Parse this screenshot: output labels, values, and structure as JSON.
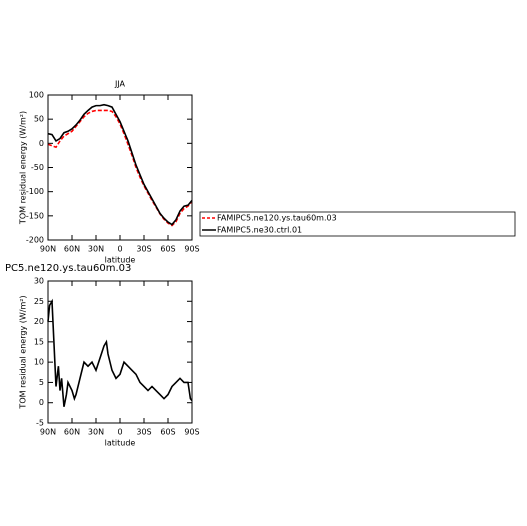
{
  "chart_data": [
    {
      "type": "line",
      "title": "JJA",
      "xlabel": "latitude",
      "ylabel": "TOM residual energy (W/m²)",
      "x": [
        90,
        85,
        80,
        75,
        70,
        65,
        60,
        55,
        50,
        45,
        40,
        35,
        30,
        25,
        20,
        15,
        10,
        5,
        0,
        -5,
        -10,
        -15,
        -20,
        -25,
        -30,
        -35,
        -40,
        -45,
        -50,
        -55,
        -60,
        -65,
        -70,
        -75,
        -80,
        -85,
        -90
      ],
      "xlim": [
        90,
        -90
      ],
      "xticks": [
        {
          "value": 90,
          "label": "90N"
        },
        {
          "value": 60,
          "label": "60N"
        },
        {
          "value": 30,
          "label": "30N"
        },
        0,
        {
          "value": -30,
          "label": "30S"
        },
        {
          "value": -60,
          "label": "60S"
        },
        {
          "value": -90,
          "label": "90S"
        }
      ],
      "ylim": [
        -200,
        100
      ],
      "yticks": [
        -200,
        -150,
        -100,
        -50,
        0,
        50,
        100
      ],
      "legend": "right",
      "series": [
        {
          "name": "FAMIPC5.ne120.ys.tau60m.03",
          "color": "#ff0000",
          "dash": true,
          "values": [
            -2,
            -5,
            -8,
            5,
            15,
            20,
            25,
            35,
            45,
            55,
            62,
            66,
            68,
            68,
            68,
            68,
            66,
            55,
            40,
            20,
            -2,
            -25,
            -50,
            -70,
            -88,
            -103,
            -118,
            -132,
            -146,
            -157,
            -165,
            -170,
            -162,
            -145,
            -135,
            -130,
            -120
          ]
        },
        {
          "name": "FAMIPC5.ne30.ctrl.01",
          "color": "#000000",
          "dash": false,
          "values": [
            20,
            18,
            5,
            10,
            22,
            25,
            30,
            38,
            48,
            60,
            68,
            75,
            78,
            78,
            80,
            78,
            75,
            60,
            45,
            25,
            5,
            -20,
            -45,
            -65,
            -85,
            -100,
            -115,
            -130,
            -145,
            -155,
            -163,
            -168,
            -158,
            -140,
            -130,
            -128,
            -118
          ]
        }
      ]
    },
    {
      "type": "line",
      "title": "PC5.ne120.ys.tau60m.03",
      "xlabel": "latitude",
      "ylabel": "TOM residual energy (W/m²)",
      "x": [
        90,
        88,
        85,
        80,
        77,
        75,
        73,
        70,
        67,
        65,
        60,
        57,
        55,
        50,
        45,
        40,
        35,
        30,
        25,
        20,
        17,
        15,
        10,
        5,
        0,
        -5,
        -10,
        -15,
        -20,
        -25,
        -30,
        -35,
        -40,
        -45,
        -50,
        -55,
        -60,
        -65,
        -70,
        -75,
        -80,
        -85,
        -88,
        -90
      ],
      "xlim": [
        90,
        -90
      ],
      "xticks": [
        {
          "value": 90,
          "label": "90N"
        },
        {
          "value": 60,
          "label": "60N"
        },
        {
          "value": 30,
          "label": "30N"
        },
        0,
        {
          "value": -30,
          "label": "30S"
        },
        {
          "value": -60,
          "label": "60S"
        },
        {
          "value": -90,
          "label": "90S"
        }
      ],
      "ylim": [
        -5,
        30
      ],
      "yticks": [
        -5,
        0,
        5,
        10,
        15,
        20,
        25,
        30
      ],
      "series": [
        {
          "color": "#000000",
          "dash": false,
          "values": [
            20,
            24,
            25,
            4,
            9,
            3,
            6,
            -1,
            2,
            5,
            3,
            1,
            2,
            6,
            10,
            9,
            10,
            8,
            11,
            14,
            15,
            12,
            8,
            6,
            7,
            10,
            9,
            8,
            7,
            5,
            4,
            3,
            4,
            3,
            2,
            1,
            2,
            4,
            5,
            6,
            5,
            5,
            1,
            0.5
          ]
        }
      ]
    }
  ]
}
